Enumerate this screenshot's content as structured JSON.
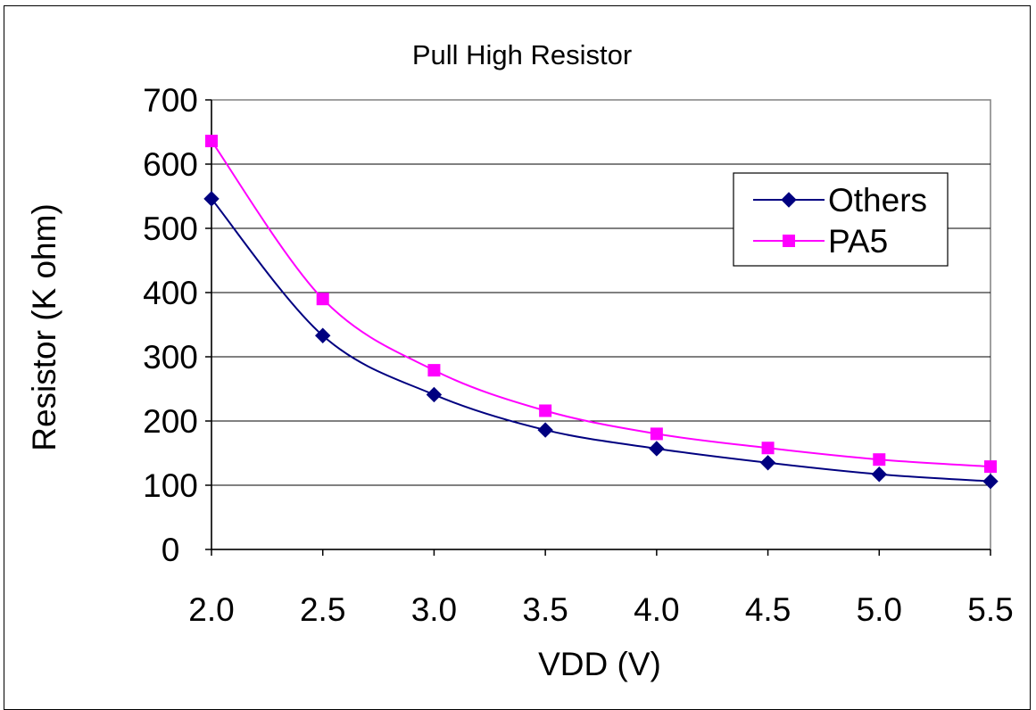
{
  "chart_data": {
    "type": "line",
    "title": "Pull High Resistor",
    "xlabel": "VDD (V)",
    "ylabel": "Resistor (K ohm)",
    "x": [
      2.0,
      2.5,
      3.0,
      3.5,
      4.0,
      4.5,
      5.0,
      5.5
    ],
    "x_tick_labels": [
      "2.0",
      "2.5",
      "3.0",
      "3.5",
      "4.0",
      "4.5",
      "5.0",
      "5.5"
    ],
    "y_ticks": [
      0,
      100,
      200,
      300,
      400,
      500,
      600,
      700
    ],
    "xlim": [
      2.0,
      5.5
    ],
    "ylim": [
      0,
      700
    ],
    "grid": "horizontal",
    "legend_position": "top-right",
    "series": [
      {
        "name": "Others",
        "color": "#000080",
        "marker": "diamond",
        "values": [
          546,
          333,
          241,
          186,
          157,
          135,
          117,
          106
        ]
      },
      {
        "name": "PA5",
        "color": "#ff00ff",
        "marker": "square",
        "values": [
          636,
          390,
          279,
          216,
          180,
          158,
          140,
          129
        ]
      }
    ]
  }
}
